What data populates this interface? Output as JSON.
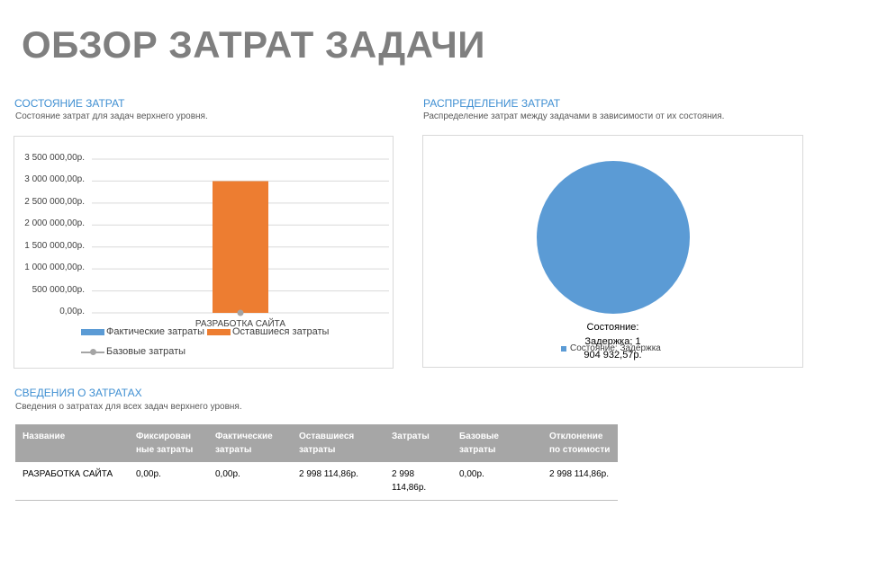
{
  "page": {
    "title": "ОБЗОР ЗАТРАТ ЗАДАЧИ"
  },
  "cost_status": {
    "title": "СОСТОЯНИЕ ЗАТРАТ",
    "subtitle": "Состояние затрат для задач верхнего уровня.",
    "legend": {
      "actual": "Фактические затраты",
      "remaining": "Оставшиеся затраты",
      "baseline": "Базовые затраты"
    }
  },
  "cost_distribution": {
    "title": "РАСПРЕДЕЛЕНИЕ ЗАТРАТ",
    "subtitle": "Распределение затрат между задачами в зависимости от их состояния.",
    "label_line1": "Состояние:",
    "label_line2": "Задержка; 1",
    "label_line3": "904 932,57р.",
    "legend": "Состояние: Задержка"
  },
  "cost_details": {
    "title": "СВЕДЕНИЯ О ЗАТРАТАХ",
    "subtitle": "Сведения о затратах для всех задач верхнего уровня.",
    "headers": [
      "Название",
      "Фиксирован ные затраты",
      "Фактические затраты",
      "Оставшиеся затраты",
      "Затраты",
      "Базовые затраты",
      "Отклонение по стоимости"
    ],
    "rows": [
      [
        "РАЗРАБОТКА САЙТА",
        "0,00р.",
        "0,00р.",
        "2 998 114,86р.",
        "2 998 114,86р.",
        "0,00р.",
        "2 998 114,86р."
      ]
    ]
  },
  "colors": {
    "actual": "#5b9bd5",
    "remaining": "#ed7d31",
    "baseline": "#a5a5a5",
    "accent": "#3f8fd2"
  },
  "chart_data": [
    {
      "type": "bar",
      "categories": [
        "РАЗРАБОТКА САЙТА"
      ],
      "series": [
        {
          "name": "Фактические затраты",
          "values": [
            0
          ]
        },
        {
          "name": "Оставшиеся затраты",
          "values": [
            2998114.86
          ]
        },
        {
          "name": "Базовые затраты",
          "values": [
            0
          ]
        }
      ],
      "yticks": [
        "0,00р.",
        "500 000,00р.",
        "1 000 000,00р.",
        "1 500 000,00р.",
        "2 000 000,00р.",
        "2 500 000,00р.",
        "3 000 000,00р.",
        "3 500 000,00р."
      ],
      "ylim": [
        0,
        3500000
      ],
      "legend": "bottom"
    },
    {
      "type": "pie",
      "categories": [
        "Состояние: Задержка"
      ],
      "values": [
        1904932.57
      ]
    }
  ]
}
